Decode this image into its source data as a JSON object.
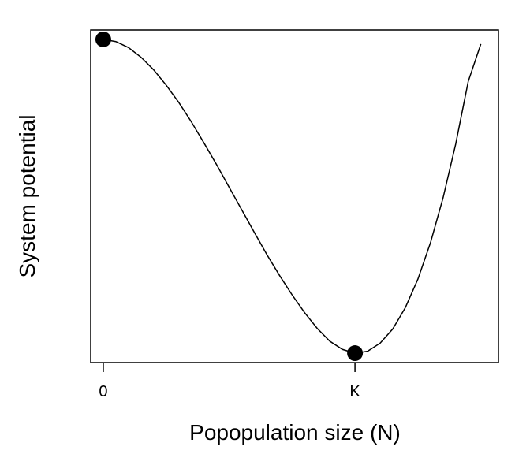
{
  "chart_data": {
    "type": "line",
    "xlabel": "Popopulation size (N)",
    "ylabel": "System potential",
    "x_ticks": [
      {
        "value": 0,
        "label": "0"
      },
      {
        "value": 1,
        "label": "K"
      }
    ],
    "xlim": [
      -0.05,
      1.57
    ],
    "ylim": [
      -0.03,
      1.03
    ],
    "y_tick_labels_shown": false,
    "grid": false,
    "legend": "none",
    "series": [
      {
        "curve": "U(N) = -N^2/2 + N^3/(3K) shape, rescaled",
        "color": "#000000",
        "x": [
          0.0,
          0.05,
          0.1,
          0.15,
          0.2,
          0.25,
          0.3,
          0.35,
          0.4,
          0.45,
          0.5,
          0.55,
          0.6,
          0.65,
          0.7,
          0.75,
          0.8,
          0.85,
          0.9,
          0.95,
          1.0,
          1.05,
          1.1,
          1.15,
          1.2,
          1.25,
          1.3,
          1.35,
          1.4,
          1.45,
          1.5
        ],
        "y": [
          1.0,
          0.993,
          0.974,
          0.943,
          0.903,
          0.854,
          0.799,
          0.737,
          0.67,
          0.601,
          0.529,
          0.457,
          0.385,
          0.314,
          0.248,
          0.186,
          0.129,
          0.079,
          0.038,
          0.012,
          0.0,
          0.006,
          0.032,
          0.077,
          0.145,
          0.236,
          0.352,
          0.495,
          0.666,
          0.866,
          0.985
        ]
      }
    ],
    "points": [
      {
        "x": 0,
        "y": 1.0,
        "label": "0"
      },
      {
        "x": 1,
        "y": 0.0,
        "label": "K"
      }
    ],
    "colors": {
      "line": "#000000",
      "point": "#000000",
      "frame": "#000000",
      "background": "#ffffff"
    }
  }
}
